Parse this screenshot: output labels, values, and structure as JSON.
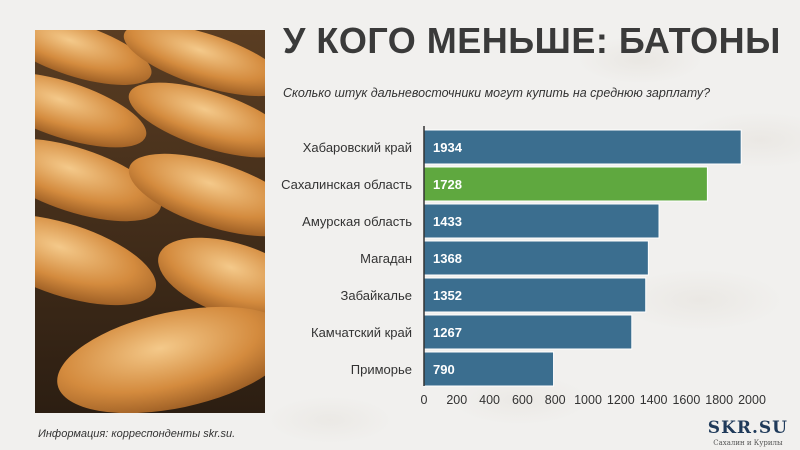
{
  "title": "У КОГО МЕНЬШЕ: БАТОНЫ",
  "subtitle": "Сколько штук дальневосточники могут купить на среднюю зарплату?",
  "footnote": "Информация: корреспонденты skr.su.",
  "logo": {
    "brand": "SKR.SU",
    "tagline": "Сахалин и Курилы"
  },
  "colors": {
    "bar": "#3b6e8f",
    "highlight": "#5fa83f",
    "axis": "#333333",
    "label": "#333333"
  },
  "chart_data": {
    "type": "bar",
    "orientation": "horizontal",
    "categories": [
      "Хабаровский край",
      "Сахалинская область",
      "Амурская область",
      "Магадан",
      "Забайкалье",
      "Камчатский край",
      "Приморье"
    ],
    "values": [
      1934,
      1728,
      1433,
      1368,
      1352,
      1267,
      790
    ],
    "highlight_index": 1,
    "xlim": [
      0,
      2000
    ],
    "xticks": [
      "0",
      "200",
      "400",
      "600",
      "800",
      "1000",
      "1200",
      "1400",
      "1600",
      "1800",
      "2000"
    ],
    "grid": false
  }
}
